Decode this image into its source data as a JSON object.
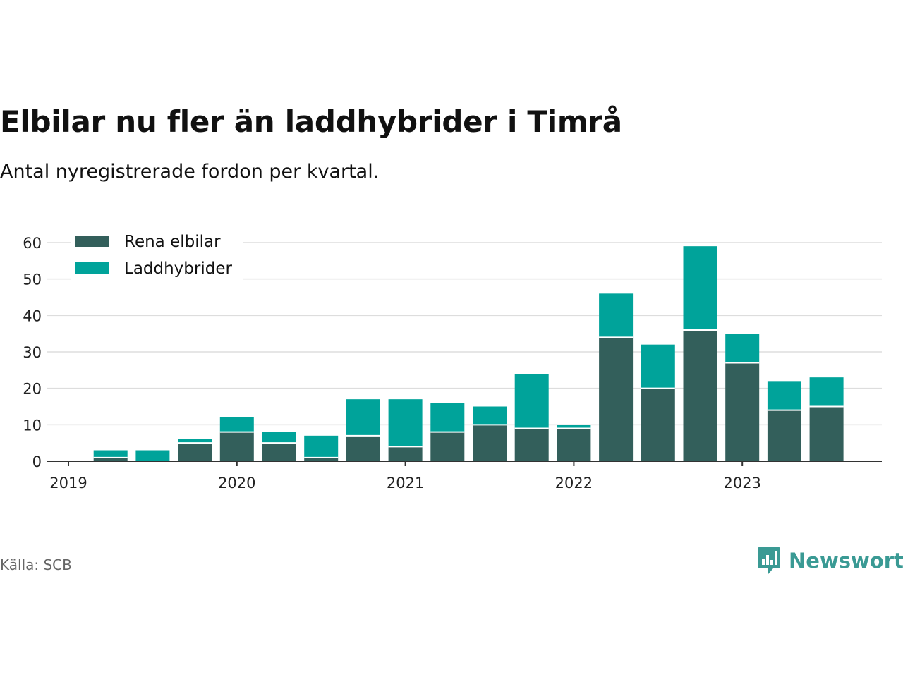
{
  "title": "Elbilar nu fler än laddhybrider i Timrå",
  "subtitle": "Antal nyregistrerade fordon per kvartal.",
  "source": "Källa: SCB",
  "brand": "Newsworthy",
  "colors": {
    "electric": "#335f5b",
    "hybrid": "#00a39a",
    "brand": "#3a9a94",
    "grid": "#dddddd",
    "axis": "#333333"
  },
  "chart_data": {
    "type": "bar",
    "stacked": true,
    "title": "Elbilar nu fler än laddhybrider i Timrå",
    "subtitle": "Antal nyregistrerade fordon per kvartal.",
    "xlabel": "",
    "ylabel": "",
    "ylim": [
      0,
      60
    ],
    "yticks": [
      0,
      10,
      20,
      30,
      40,
      50,
      60
    ],
    "xtick_labels": [
      "2019",
      "2020",
      "2021",
      "2022",
      "2023"
    ],
    "legend_position": "top-left",
    "categories": [
      "2019 Q2",
      "2019 Q3",
      "2019 Q4",
      "2020 Q1",
      "2020 Q2",
      "2020 Q3",
      "2020 Q4",
      "2021 Q1",
      "2021 Q2",
      "2021 Q3",
      "2021 Q4",
      "2022 Q1",
      "2022 Q2",
      "2022 Q3",
      "2022 Q4",
      "2023 Q1",
      "2023 Q2",
      "2023 Q3"
    ],
    "series": [
      {
        "name": "Rena elbilar",
        "values": [
          1,
          0,
          5,
          8,
          5,
          1,
          7,
          4,
          8,
          10,
          9,
          9,
          34,
          20,
          36,
          27,
          14,
          15
        ]
      },
      {
        "name": "Laddhybrider",
        "values": [
          2,
          3,
          1,
          4,
          3,
          6,
          10,
          13,
          8,
          5,
          15,
          1,
          12,
          12,
          23,
          8,
          8,
          8
        ]
      }
    ]
  }
}
